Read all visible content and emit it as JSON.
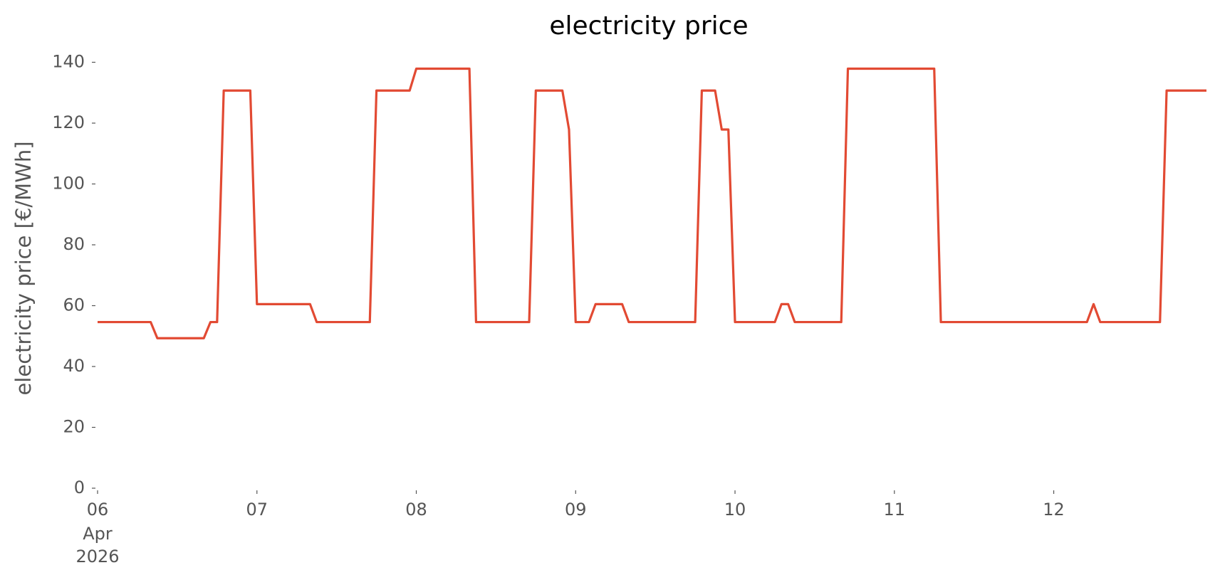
{
  "chart_data": {
    "type": "line",
    "title": "electricity price",
    "ylabel": "electricity price [€/MWh]",
    "x": [
      0,
      8,
      9,
      16,
      17,
      18,
      19,
      23,
      24,
      32,
      33,
      41,
      42,
      47,
      48,
      56,
      57,
      65,
      66,
      70,
      71,
      72,
      74,
      75,
      79,
      80,
      90,
      91,
      93,
      94,
      95,
      96,
      102,
      103,
      104,
      105,
      112,
      113,
      126,
      127,
      149,
      150,
      151,
      160,
      161,
      167
    ],
    "series": [
      {
        "name": "electricity price",
        "color": "#e24a33",
        "values": [
          54.6,
          54.6,
          49.3,
          49.3,
          54.6,
          54.6,
          130.7,
          130.7,
          60.5,
          60.5,
          54.6,
          54.6,
          130.7,
          130.7,
          137.9,
          137.9,
          54.6,
          54.6,
          130.7,
          130.7,
          117.9,
          54.6,
          54.6,
          60.5,
          60.5,
          54.6,
          54.6,
          130.7,
          130.7,
          117.9,
          117.9,
          54.6,
          54.6,
          60.5,
          60.5,
          54.6,
          54.6,
          137.9,
          137.9,
          54.6,
          54.6,
          60.5,
          54.6,
          54.6,
          130.7,
          130.7
        ]
      }
    ],
    "xlim": [
      0,
      167
    ],
    "xticks": [
      {
        "value": 0,
        "label": "06"
      },
      {
        "value": 24,
        "label": "07"
      },
      {
        "value": 48,
        "label": "08"
      },
      {
        "value": 72,
        "label": "09"
      },
      {
        "value": 96,
        "label": "10"
      },
      {
        "value": 120,
        "label": "11"
      },
      {
        "value": 144,
        "label": "12"
      }
    ],
    "x_first_tick_sublabels": [
      "Apr",
      "2026"
    ],
    "ylim": [
      0,
      140
    ],
    "yticks": [
      0,
      20,
      40,
      60,
      80,
      100,
      120,
      140
    ],
    "grid": false
  }
}
